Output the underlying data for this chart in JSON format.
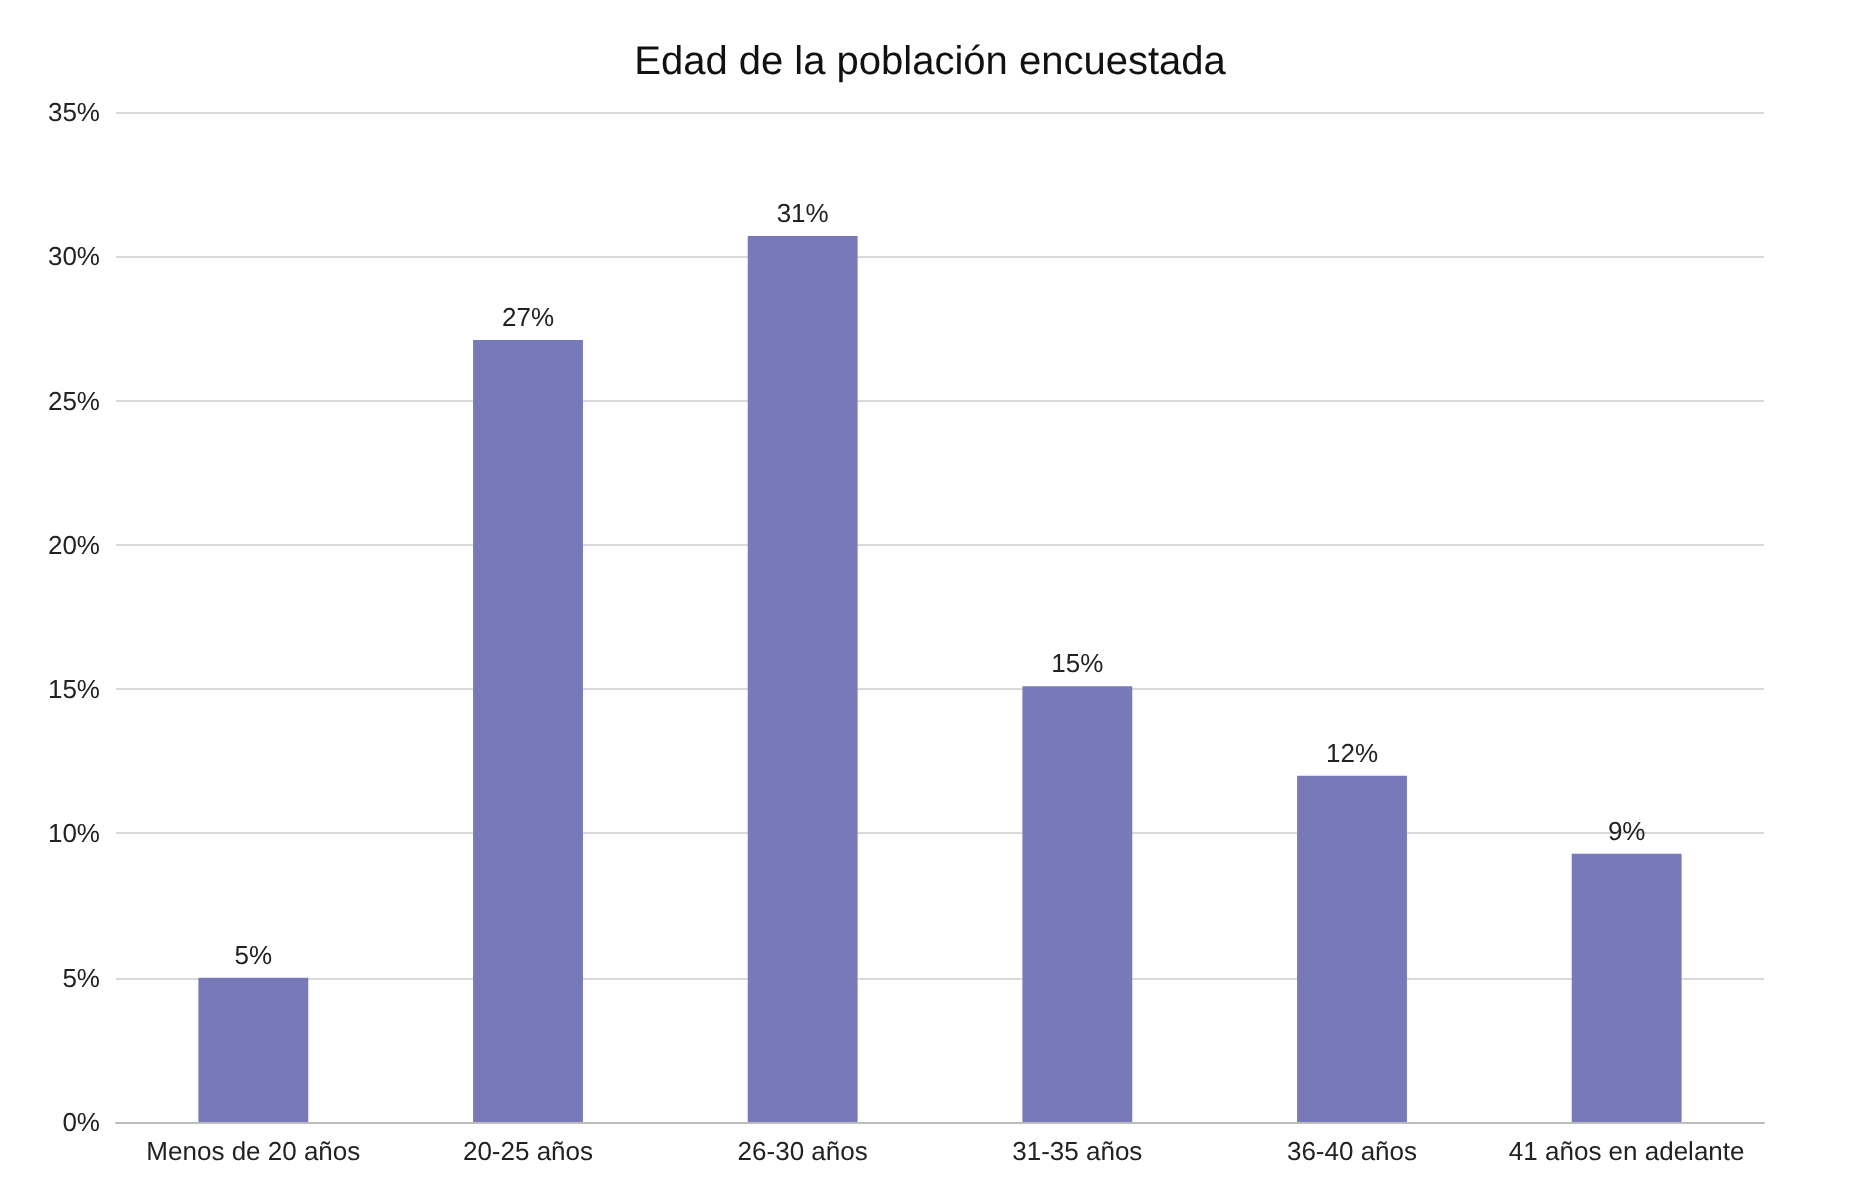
{
  "chart_data": {
    "type": "bar",
    "title": "Edad de la población encuestada",
    "categories": [
      "Menos de 20 años",
      "20-25 años",
      "26-30 años",
      "31-35 años",
      "36-40 años",
      "41 años en adelante"
    ],
    "values": [
      5,
      27.1,
      30.7,
      15.1,
      12,
      9.3
    ],
    "value_labels": [
      "5%",
      "27%",
      "31%",
      "15%",
      "12%",
      "9%"
    ],
    "color": "#7779b8",
    "ylim": [
      0,
      35
    ],
    "yticks": [
      {
        "value": 0,
        "label": "0%"
      },
      {
        "value": 5,
        "label": "5%"
      },
      {
        "value": 10,
        "label": "10%"
      },
      {
        "value": 15,
        "label": "15%"
      },
      {
        "value": 20,
        "label": "20%"
      },
      {
        "value": 25,
        "label": "25%"
      },
      {
        "value": 30,
        "label": "30%"
      },
      {
        "value": 35,
        "label": "35%"
      }
    ],
    "grid": "y"
  }
}
